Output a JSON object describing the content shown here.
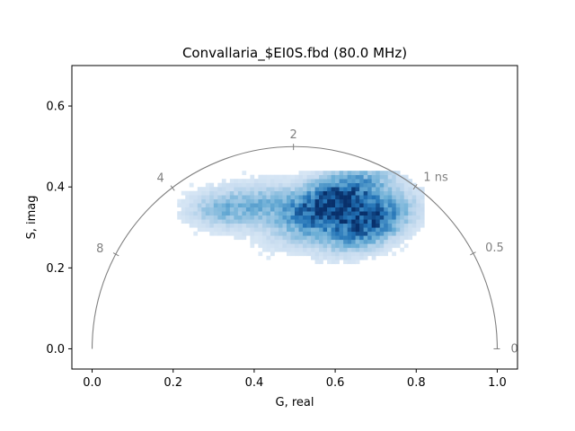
{
  "chart_data": {
    "type": "heatmap",
    "title": "Convallaria_$EI0S.fbd (80.0 MHz)",
    "xlabel": "G, real",
    "ylabel": "S, imag",
    "xlim": [
      -0.05,
      1.05
    ],
    "ylim": [
      -0.05,
      0.7
    ],
    "x_ticks": [
      0.0,
      0.2,
      0.4,
      0.6,
      0.8,
      1.0
    ],
    "x_tick_labels": [
      "0.0",
      "0.2",
      "0.4",
      "0.6",
      "0.8",
      "1.0"
    ],
    "y_ticks": [
      0.0,
      0.2,
      0.4,
      0.6
    ],
    "y_tick_labels": [
      "0.0",
      "0.2",
      "0.4",
      "0.6"
    ],
    "grid": false,
    "universal_semicircle": {
      "center": [
        0.5,
        0.0
      ],
      "radius": 0.5,
      "color": "#808080"
    },
    "lifetime_markers": [
      {
        "label": "0",
        "g": 1.0,
        "s": 0.0
      },
      {
        "label": "0.5",
        "g": 0.941,
        "s": 0.236
      },
      {
        "label": "1 ns",
        "g": 0.798,
        "s": 0.401
      },
      {
        "label": "2",
        "g": 0.497,
        "s": 0.5
      },
      {
        "label": "4",
        "g": 0.198,
        "s": 0.398
      },
      {
        "label": "8",
        "g": 0.058,
        "s": 0.234
      }
    ],
    "colormap": "Blues",
    "histogram_density": {
      "bin_size": 0.01,
      "clusters": [
        {
          "center_g": 0.59,
          "center_s": 0.355,
          "sigma_g": 0.085,
          "sigma_s": 0.04,
          "peak": 1.0,
          "rotation": -0.45
        },
        {
          "center_g": 0.68,
          "center_s": 0.305,
          "sigma_g": 0.07,
          "sigma_s": 0.035,
          "peak": 0.8,
          "rotation": -0.4
        },
        {
          "center_g": 0.4,
          "center_s": 0.35,
          "sigma_g": 0.08,
          "sigma_s": 0.035,
          "peak": 0.35,
          "rotation": -0.1
        },
        {
          "center_g": 0.3,
          "center_s": 0.34,
          "sigma_g": 0.05,
          "sigma_s": 0.03,
          "peak": 0.18,
          "rotation": 0.0
        }
      ],
      "extent_g": [
        0.18,
        0.82
      ],
      "extent_s": [
        0.16,
        0.44
      ]
    }
  }
}
